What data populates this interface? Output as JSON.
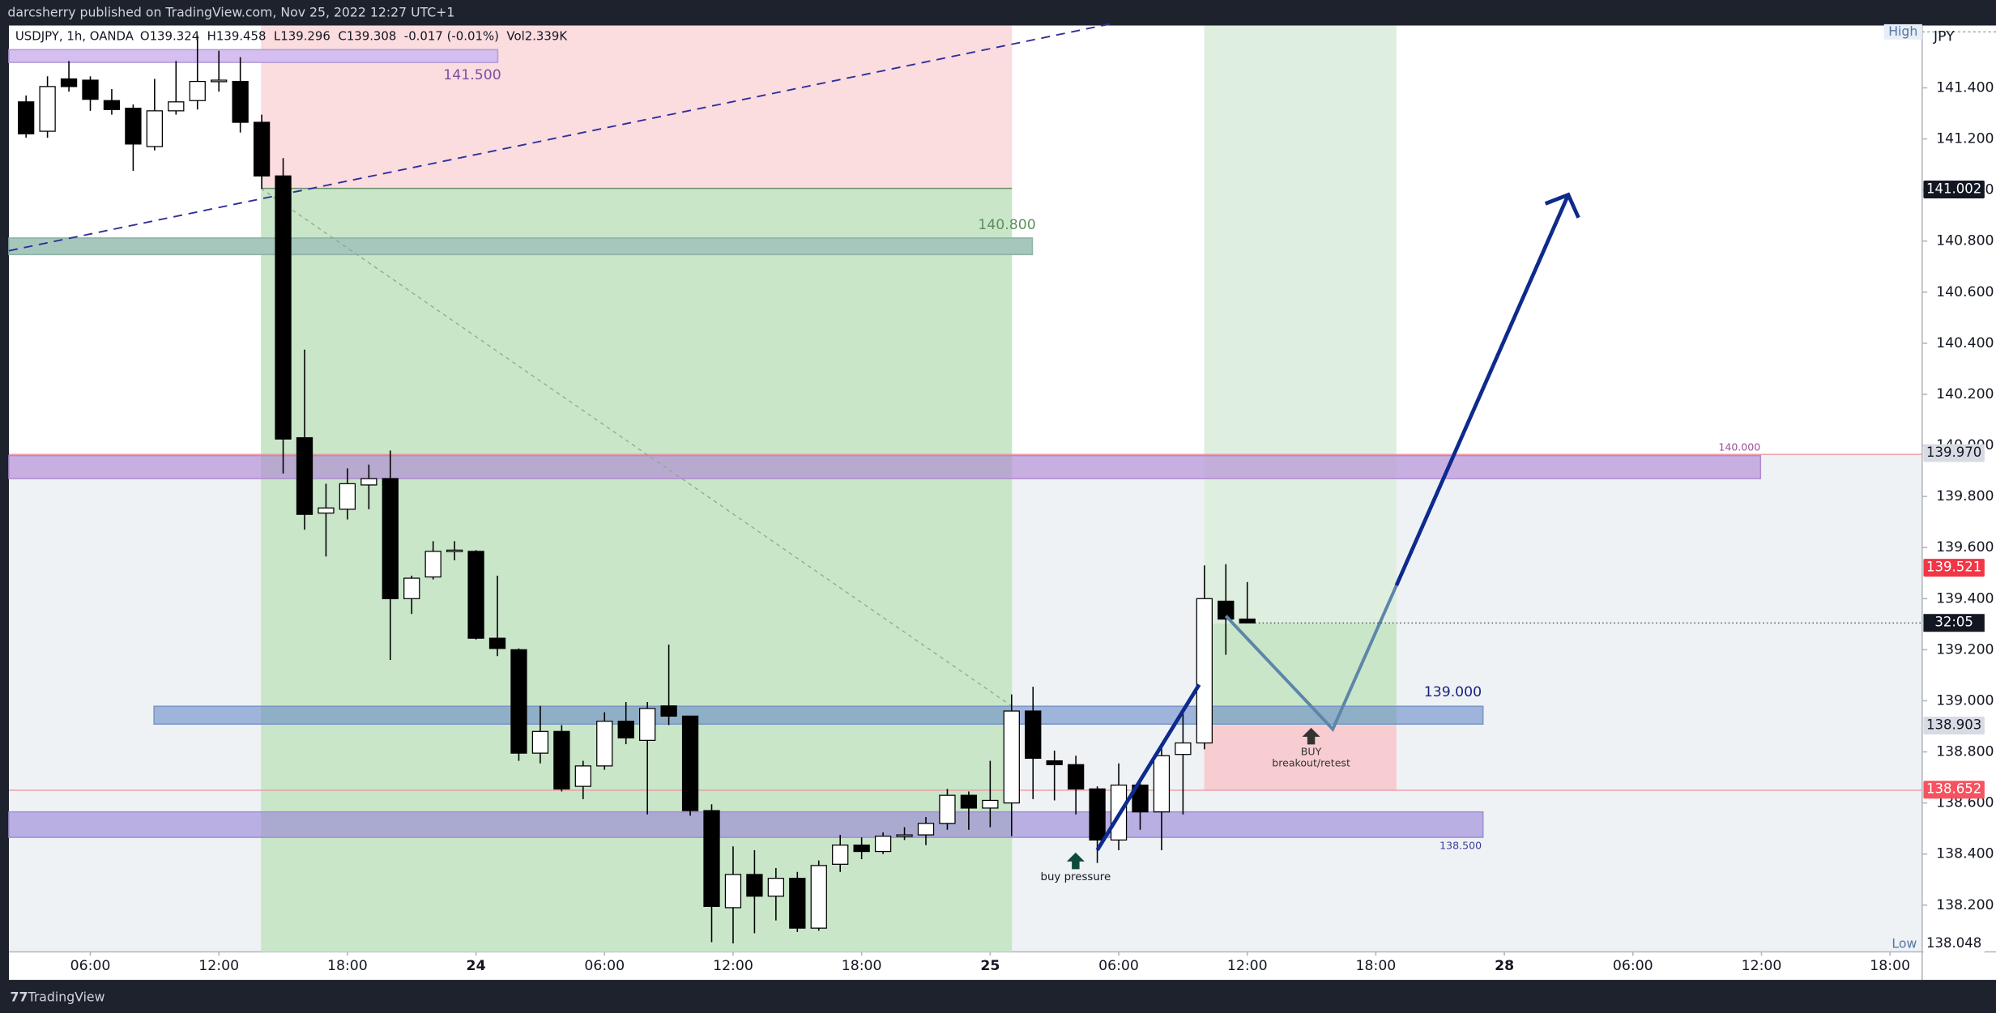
{
  "header": {
    "published": "darcsherry published on TradingView.com, Nov 25, 2022 12:27 UTC+1",
    "footer": "TradingView"
  },
  "chart_data": {
    "type": "candlestick",
    "legend": "USDJPY, 1h, OANDA",
    "stats": [
      "O139.324",
      "H139.458",
      "L139.296",
      "C139.308",
      "-0.017 (-0.01%)",
      "Vol2.339K"
    ],
    "currency": "JPY",
    "up_color": "#ffffff",
    "down_color": "#000000",
    "outline_color": "#000000",
    "x": [
      3,
      4,
      5,
      6,
      7,
      8,
      9,
      10,
      11,
      12,
      13,
      14,
      15,
      16,
      17,
      18,
      19,
      20,
      21,
      22,
      23,
      24,
      25,
      26,
      27,
      28,
      29,
      30,
      31,
      32,
      33,
      34,
      35,
      36,
      37,
      38,
      39,
      40,
      41,
      42,
      43,
      44,
      45,
      46,
      47,
      48,
      49,
      50,
      51,
      52,
      53,
      54,
      55,
      56,
      57,
      58,
      59,
      60
    ],
    "open": [
      141.345,
      141.23,
      141.435,
      141.43,
      141.35,
      141.32,
      141.17,
      141.31,
      141.35,
      141.43,
      141.425,
      141.265,
      141.055,
      140.03,
      139.735,
      139.75,
      139.845,
      139.87,
      139.4,
      139.485,
      139.59,
      139.585,
      139.245,
      139.2,
      138.795,
      138.88,
      138.665,
      138.745,
      138.92,
      138.845,
      138.98,
      138.94,
      138.57,
      138.19,
      138.32,
      138.235,
      138.305,
      138.11,
      138.36,
      138.435,
      138.41,
      138.475,
      138.475,
      138.52,
      138.63,
      138.58,
      138.6,
      138.96,
      138.765,
      138.75,
      138.655,
      138.455,
      138.67,
      138.565,
      138.79,
      138.835,
      139.39,
      139.32
    ],
    "high": [
      141.37,
      141.445,
      141.505,
      141.445,
      141.395,
      141.335,
      141.435,
      141.505,
      141.605,
      141.545,
      141.52,
      141.295,
      141.125,
      140.375,
      139.85,
      139.91,
      139.925,
      139.98,
      139.49,
      139.625,
      139.625,
      139.59,
      139.49,
      139.205,
      138.98,
      138.905,
      138.765,
      138.955,
      138.995,
      138.995,
      139.22,
      138.94,
      138.595,
      138.43,
      138.415,
      138.345,
      138.33,
      138.375,
      138.475,
      138.465,
      138.485,
      138.505,
      138.545,
      138.655,
      138.645,
      138.765,
      139.025,
      139.055,
      138.805,
      138.785,
      138.665,
      138.755,
      138.695,
      138.815,
      138.955,
      139.53,
      139.535,
      139.465
    ],
    "low": [
      141.205,
      141.205,
      141.385,
      141.31,
      141.295,
      141.075,
      141.155,
      141.295,
      141.315,
      141.385,
      141.225,
      141.005,
      139.89,
      139.67,
      139.565,
      139.71,
      139.75,
      139.16,
      139.34,
      139.475,
      139.55,
      139.24,
      139.175,
      138.765,
      138.755,
      138.645,
      138.615,
      138.73,
      138.83,
      138.555,
      138.905,
      138.55,
      138.055,
      138.05,
      138.09,
      138.14,
      138.095,
      138.1,
      138.33,
      138.38,
      138.4,
      138.455,
      138.435,
      138.495,
      138.495,
      138.505,
      138.47,
      138.615,
      138.61,
      138.555,
      138.365,
      138.415,
      138.495,
      138.415,
      138.555,
      138.81,
      139.18,
      139.305
    ],
    "close": [
      141.22,
      141.405,
      141.405,
      141.355,
      141.315,
      141.18,
      141.31,
      141.345,
      141.425,
      141.43,
      141.265,
      141.055,
      140.025,
      139.73,
      139.755,
      139.85,
      139.87,
      139.4,
      139.48,
      139.585,
      139.59,
      139.245,
      139.205,
      138.795,
      138.88,
      138.655,
      138.745,
      138.92,
      138.855,
      138.97,
      138.94,
      138.57,
      138.195,
      138.32,
      138.235,
      138.305,
      138.11,
      138.355,
      138.435,
      138.41,
      138.47,
      138.475,
      138.52,
      138.63,
      138.58,
      138.61,
      138.96,
      138.775,
      138.75,
      138.655,
      138.455,
      138.67,
      138.565,
      138.785,
      138.835,
      139.4,
      139.32,
      139.305
    ],
    "xlim": [
      2.2,
      91.5
    ],
    "xticks": [
      {
        "value": 6,
        "label": "06:00"
      },
      {
        "value": 12,
        "label": "12:00"
      },
      {
        "value": 18,
        "label": "18:00"
      },
      {
        "value": 24,
        "label": "24"
      },
      {
        "value": 30,
        "label": "06:00"
      },
      {
        "value": 36,
        "label": "12:00"
      },
      {
        "value": 42,
        "label": "18:00"
      },
      {
        "value": 48,
        "label": "25"
      },
      {
        "value": 54,
        "label": "06:00"
      },
      {
        "value": 60,
        "label": "12:00"
      },
      {
        "value": 66,
        "label": "18:00"
      },
      {
        "value": 72,
        "label": "28"
      },
      {
        "value": 78,
        "label": "06:00"
      },
      {
        "value": 84,
        "label": "12:00"
      },
      {
        "value": 90,
        "label": "18:00"
      }
    ],
    "ylim": [
      138.017,
      141.644
    ],
    "yticks": [
      {
        "value": 138.2,
        "label": "138.200"
      },
      {
        "value": 138.4,
        "label": "138.400"
      },
      {
        "value": 138.6,
        "label": "138.600"
      },
      {
        "value": 138.8,
        "label": "138.800"
      },
      {
        "value": 139.0,
        "label": "139.000"
      },
      {
        "value": 139.2,
        "label": "139.200"
      },
      {
        "value": 139.4,
        "label": "139.400"
      },
      {
        "value": 139.6,
        "label": "139.600"
      },
      {
        "value": 139.8,
        "label": "139.800"
      },
      {
        "value": 140.0,
        "label": "140.000"
      },
      {
        "value": 140.2,
        "label": "140.200"
      },
      {
        "value": 140.4,
        "label": "140.400"
      },
      {
        "value": 140.6,
        "label": "140.600"
      },
      {
        "value": 140.8,
        "label": "140.800"
      },
      {
        "value": 141.0,
        "label": "141.000"
      },
      {
        "value": 141.2,
        "label": "141.200"
      },
      {
        "value": 141.4,
        "label": "141.400"
      }
    ],
    "price_labels": [
      {
        "value": 141.002,
        "label": "141.002",
        "color": "#131722"
      },
      {
        "value": 139.97,
        "label": "139.970",
        "color": "#d8dbe3"
      },
      {
        "value": 139.521,
        "label": "139.521",
        "color": "#f23645"
      },
      {
        "value": 138.903,
        "label": "138.903",
        "color": "#d8dbe3"
      },
      {
        "value": 138.652,
        "label": "138.652",
        "color": "#f7525f"
      },
      {
        "value": 138.048,
        "label": "138.048",
        "color": "#ffffff"
      }
    ],
    "countdown": "32:05",
    "high_label": "High",
    "low_label": "Low",
    "zone_labels": [
      "141.500",
      "140.800",
      "139.000",
      "138.500",
      "140.000"
    ],
    "annotations": [
      "buy pressure",
      "BUY",
      "breakout/retest"
    ]
  }
}
